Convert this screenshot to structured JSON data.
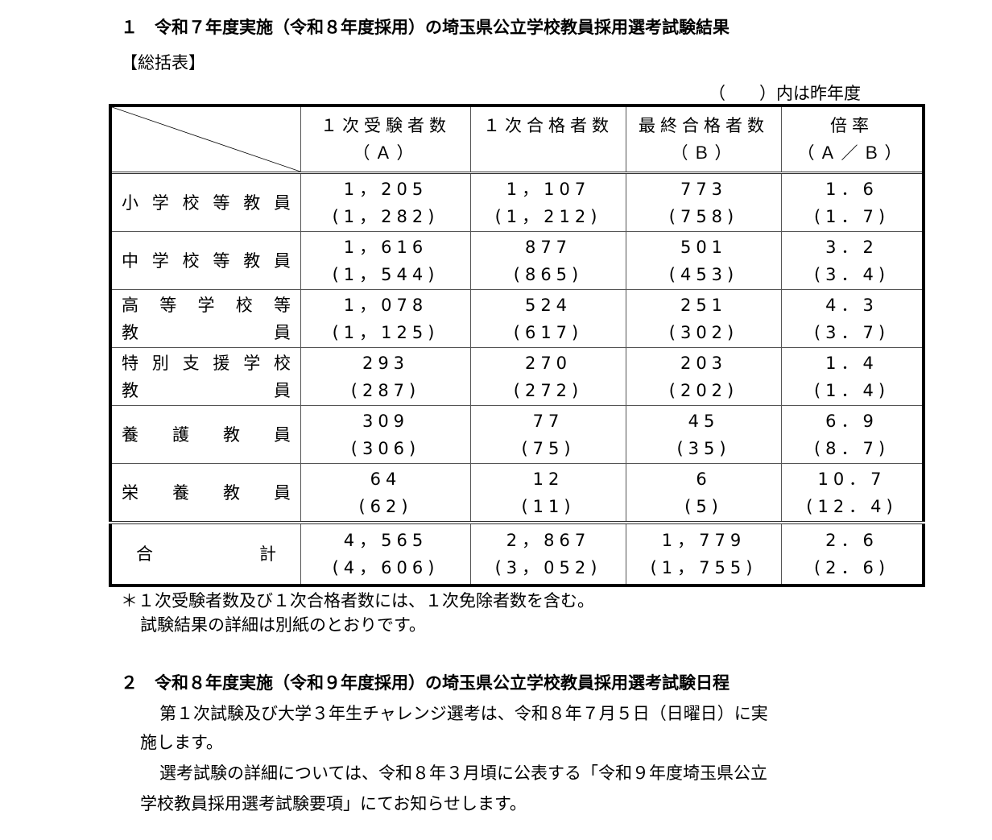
{
  "section1": {
    "title": "１　令和７年度実施（令和８年度採用）の埼玉県公立学校教員採用選考試験結果",
    "subtitle": "【総括表】",
    "note_right": "（　　）内は昨年度",
    "table": {
      "headers": [
        [
          "１次受験者数",
          "（Ａ）"
        ],
        [
          "１次合格者数",
          ""
        ],
        [
          "最終合格者数",
          "（Ｂ）"
        ],
        [
          "倍率",
          "（Ａ／Ｂ）"
        ]
      ],
      "rows": [
        {
          "label": [
            "小学校等教員"
          ],
          "cells": [
            [
              "1，205",
              "(1，282)"
            ],
            [
              "1，107",
              "(1，212)"
            ],
            [
              "773",
              "(758)"
            ],
            [
              "1．6",
              "(1．7)"
            ]
          ]
        },
        {
          "label": [
            "中学校等教員"
          ],
          "cells": [
            [
              "1，616",
              "(1，544)"
            ],
            [
              "877",
              "(865)"
            ],
            [
              "501",
              "(453)"
            ],
            [
              "3．2",
              "(3．4)"
            ]
          ]
        },
        {
          "label": [
            "高等学校等",
            "教員"
          ],
          "cells": [
            [
              "1，078",
              "(1，125)"
            ],
            [
              "524",
              "(617)"
            ],
            [
              "251",
              "(302)"
            ],
            [
              "4．3",
              "(3．7)"
            ]
          ]
        },
        {
          "label": [
            "特別支援学校",
            "教員"
          ],
          "cells": [
            [
              "293",
              "(287)"
            ],
            [
              "270",
              "(272)"
            ],
            [
              "203",
              "(202)"
            ],
            [
              "1．4",
              "(1．4)"
            ]
          ]
        },
        {
          "label": [
            "養護教員"
          ],
          "cells": [
            [
              "309",
              "(306)"
            ],
            [
              "77",
              "(75)"
            ],
            [
              "45",
              "(35)"
            ],
            [
              "6．9",
              "(8．7)"
            ]
          ]
        },
        {
          "label": [
            "栄養教員"
          ],
          "cells": [
            [
              "64",
              "(62)"
            ],
            [
              "12",
              "(11)"
            ],
            [
              "6",
              "(5)"
            ],
            [
              "10．7",
              "(12．4)"
            ]
          ]
        }
      ],
      "total": {
        "label": [
          "合計"
        ],
        "cells": [
          [
            "4，565",
            "(4，606)"
          ],
          [
            "2，867",
            "(3，052)"
          ],
          [
            "1，779",
            "(1，755)"
          ],
          [
            "2．6",
            "(2．6)"
          ]
        ]
      }
    },
    "footnote1": "＊１次受験者数及び１次合格者数には、１次免除者数を含む。",
    "footnote2": "試験結果の詳細は別紙のとおりです。"
  },
  "section2": {
    "title": "２　令和８年度実施（令和９年度採用）の埼玉県公立学校教員採用選考試験日程",
    "p1_line1": "第１次試験及び大学３年生チャレンジ選考は、令和８年７月５日（日曜日）に実",
    "p1_line2": "施します。",
    "p2_line1": "選考試験の詳細については、令和８年３月頃に公表する「令和９年度埼玉県公立",
    "p2_line2": "学校教員採用選考試験要項」にてお知らせします。"
  }
}
